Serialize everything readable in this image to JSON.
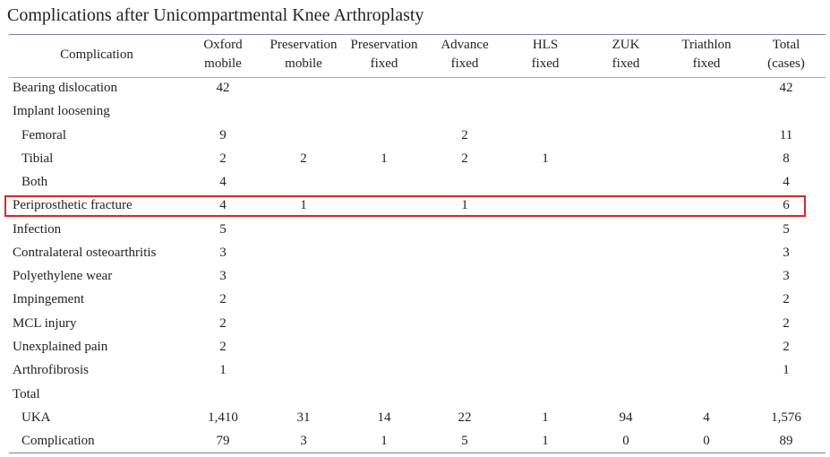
{
  "title": "Complications after Unicompartmental Knee Arthroplasty",
  "table": {
    "header": [
      [
        "Complication"
      ],
      [
        "Oxford",
        "mobile"
      ],
      [
        "Preservation",
        "mobile"
      ],
      [
        "Preservation",
        "fixed"
      ],
      [
        "Advance",
        "fixed"
      ],
      [
        "HLS",
        "fixed"
      ],
      [
        "ZUK",
        "fixed"
      ],
      [
        "Triathlon",
        "fixed"
      ],
      [
        "Total",
        "(cases)"
      ]
    ],
    "rows": [
      {
        "label": "Bearing dislocation",
        "cells": [
          "42",
          null,
          null,
          null,
          null,
          null,
          null,
          "42"
        ]
      },
      {
        "label": "Implant loosening",
        "cells": [
          null,
          null,
          null,
          null,
          null,
          null,
          null,
          null
        ]
      },
      {
        "label": "Femoral",
        "indent": true,
        "cells": [
          "9",
          null,
          null,
          "2",
          null,
          null,
          null,
          "11"
        ]
      },
      {
        "label": "Tibial",
        "indent": true,
        "cells": [
          "2",
          "2",
          "1",
          "2",
          "1",
          null,
          null,
          "8"
        ]
      },
      {
        "label": "Both",
        "indent": true,
        "cells": [
          "4",
          null,
          null,
          null,
          null,
          null,
          null,
          "4"
        ]
      },
      {
        "label": "Periprosthetic fracture",
        "highlighted": true,
        "cells": [
          "4",
          "1",
          null,
          "1",
          null,
          null,
          null,
          "6"
        ]
      },
      {
        "label": "Infection",
        "cells": [
          "5",
          null,
          null,
          null,
          null,
          null,
          null,
          "5"
        ]
      },
      {
        "label": "Contralateral osteoarthritis",
        "cells": [
          "3",
          null,
          null,
          null,
          null,
          null,
          null,
          "3"
        ]
      },
      {
        "label": "Polyethylene wear",
        "cells": [
          "3",
          null,
          null,
          null,
          null,
          null,
          null,
          "3"
        ]
      },
      {
        "label": "Impingement",
        "cells": [
          "2",
          null,
          null,
          null,
          null,
          null,
          null,
          "2"
        ]
      },
      {
        "label": "MCL injury",
        "cells": [
          "2",
          null,
          null,
          null,
          null,
          null,
          null,
          "2"
        ]
      },
      {
        "label": "Unexplained pain",
        "cells": [
          "2",
          null,
          null,
          null,
          null,
          null,
          null,
          "2"
        ]
      },
      {
        "label": "Arthrofibrosis",
        "cells": [
          "1",
          null,
          null,
          null,
          null,
          null,
          null,
          "1"
        ]
      },
      {
        "label": "Total",
        "cells": [
          null,
          null,
          null,
          null,
          null,
          null,
          null,
          null
        ]
      },
      {
        "label": "UKA",
        "indent": true,
        "cells": [
          "1,410",
          "31",
          "14",
          "22",
          "1",
          "94",
          "4",
          "1,576"
        ]
      },
      {
        "label": "Complication",
        "indent": true,
        "cells": [
          "79",
          "3",
          "1",
          "5",
          "1",
          "0",
          "0",
          "89"
        ]
      }
    ]
  }
}
